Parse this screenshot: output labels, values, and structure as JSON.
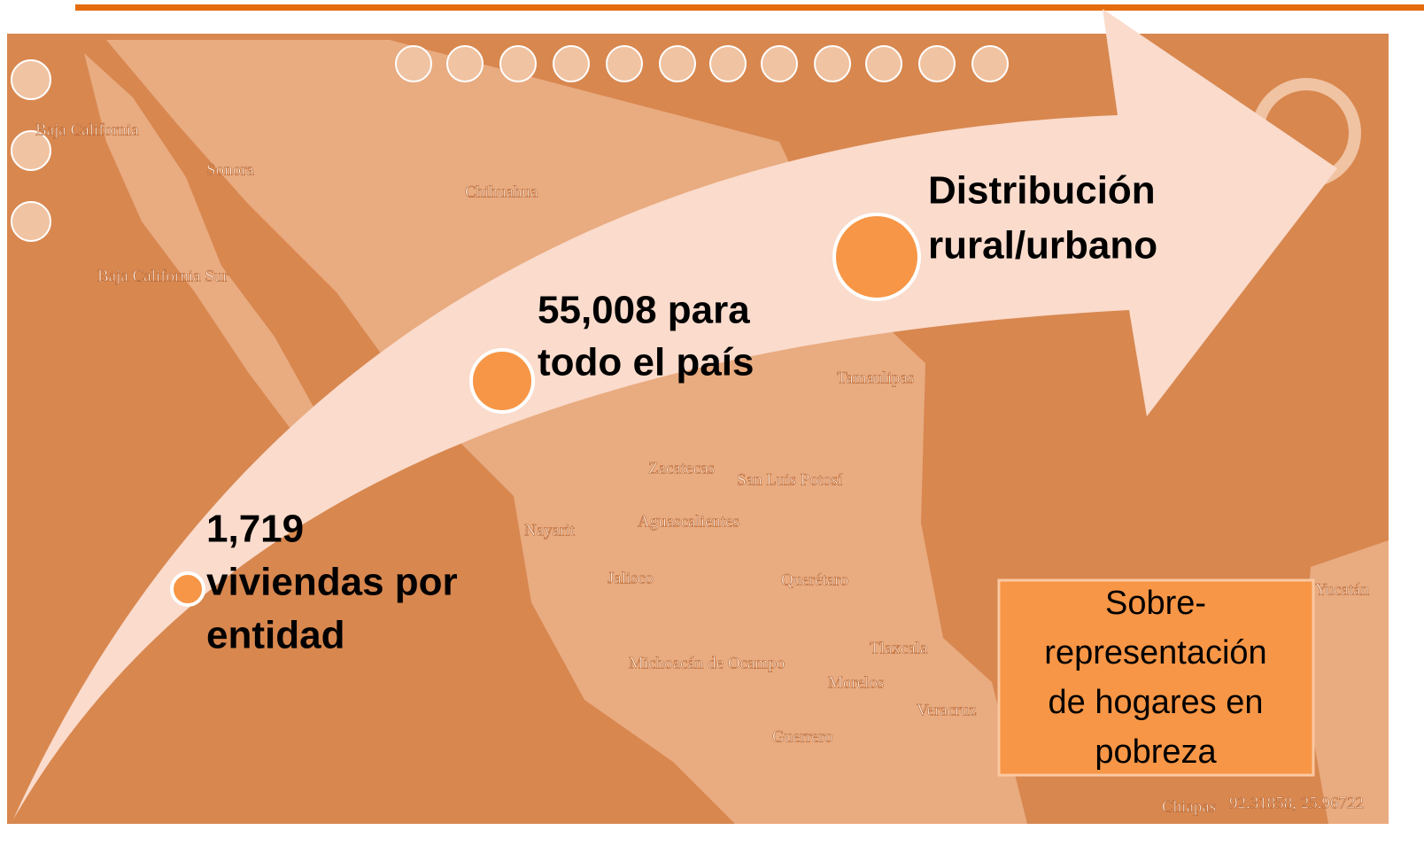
{
  "milestones": [
    {
      "lines": [
        "1,719",
        "viviendas por",
        "entidad"
      ]
    },
    {
      "lines": [
        "55,008 para",
        "todo el país"
      ]
    },
    {
      "lines": [
        "Distribución",
        "rural/urbano"
      ]
    }
  ],
  "callout": {
    "lines": [
      "Sobre-",
      "representación",
      "de hogares en",
      "pobreza"
    ]
  },
  "map": {
    "labels": [
      "Baja California",
      "Sonora",
      "Chihuahua",
      "Baja California Sur",
      "Tamaulipas",
      "Zacatecas",
      "San Luis Potosí",
      "Aguascalientes",
      "Nayarit",
      "Jalisco",
      "Querétaro",
      "Michoacán de Ocampo",
      "Tlaxcala",
      "Morelos",
      "Guerrero",
      "Veracruz",
      "Yucatán",
      "Chiapas"
    ],
    "coordinates": "92.31858, 25.96722"
  }
}
